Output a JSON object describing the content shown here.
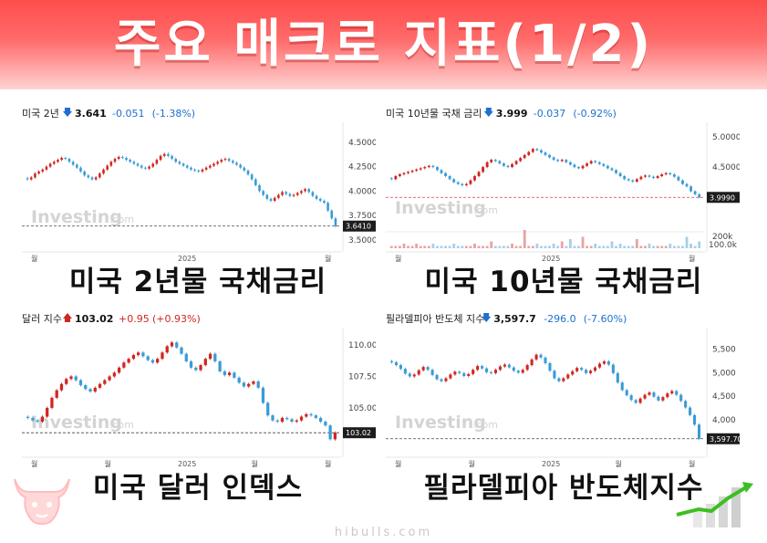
{
  "title": "주요 매크로 지표(1/2)",
  "footer": "hibulls.com",
  "colors": {
    "up": "#d0261f",
    "down": "#3a9bd6",
    "accent": "#ff5a5a"
  },
  "chart_data": [
    {
      "type": "candlestick",
      "name": "미국 2년물 국채금리",
      "caption": "미국 2년물 국채금리",
      "header": {
        "name": "미국 2년",
        "arrow": "down",
        "price": "3.641",
        "change": "-0.051",
        "pct": "(-1.38%)"
      },
      "yticks": [
        "4.5000",
        "4.2500",
        "4.0000",
        "3.7500",
        "3.5000"
      ],
      "ytick_values": [
        4.5,
        4.25,
        4.0,
        3.75,
        3.5
      ],
      "ylim": [
        3.47,
        4.63
      ],
      "xticks": [
        "월",
        "2025",
        "월"
      ],
      "last_label": "3.6410",
      "last": 3.641,
      "watermark": "Investing",
      "watermark_suffix": ".com",
      "closes": [
        4.12,
        4.14,
        4.18,
        4.2,
        4.22,
        4.25,
        4.28,
        4.3,
        4.32,
        4.34,
        4.33,
        4.3,
        4.27,
        4.24,
        4.2,
        4.16,
        4.14,
        4.12,
        4.14,
        4.18,
        4.22,
        4.26,
        4.3,
        4.33,
        4.35,
        4.34,
        4.32,
        4.3,
        4.28,
        4.26,
        4.24,
        4.23,
        4.25,
        4.28,
        4.32,
        4.36,
        4.38,
        4.36,
        4.33,
        4.3,
        4.28,
        4.26,
        4.24,
        4.22,
        4.21,
        4.2,
        4.22,
        4.24,
        4.26,
        4.28,
        4.3,
        4.32,
        4.33,
        4.31,
        4.29,
        4.27,
        4.24,
        4.21,
        4.17,
        4.12,
        4.06,
        4.0,
        3.96,
        3.92,
        3.9,
        3.93,
        3.96,
        3.99,
        3.97,
        3.95,
        3.96,
        3.98,
        4.0,
        4.02,
        3.99,
        3.95,
        3.92,
        3.9,
        3.88,
        3.8,
        3.72,
        3.641
      ]
    },
    {
      "type": "candlestick",
      "name": "미국 10년물 국채금리",
      "caption": "미국 10년물 국채금리",
      "header": {
        "name": "미국 10년물 국채 금리",
        "arrow": "down",
        "price": "3.999",
        "change": "-0.037",
        "pct": "(-0.92%)"
      },
      "yticks": [
        "5.0000",
        "4.5000",
        "4.0000"
      ],
      "ytick_values": [
        5.0,
        4.5,
        4.0
      ],
      "ylim": [
        3.55,
        5.12
      ],
      "xticks": [
        "월",
        "2025",
        "월"
      ],
      "last_label": "3.9990",
      "last": 3.999,
      "volume_label": "200k",
      "volume_label2": "100.0k",
      "watermark": "Investing",
      "watermark_suffix": ".com",
      "closes": [
        4.3,
        4.35,
        4.38,
        4.4,
        4.42,
        4.44,
        4.46,
        4.48,
        4.5,
        4.52,
        4.5,
        4.45,
        4.4,
        4.35,
        4.3,
        4.25,
        4.22,
        4.2,
        4.22,
        4.28,
        4.35,
        4.42,
        4.5,
        4.58,
        4.62,
        4.6,
        4.56,
        4.52,
        4.5,
        4.55,
        4.6,
        4.65,
        4.7,
        4.75,
        4.8,
        4.78,
        4.74,
        4.7,
        4.66,
        4.62,
        4.6,
        4.62,
        4.58,
        4.54,
        4.5,
        4.48,
        4.52,
        4.56,
        4.6,
        4.58,
        4.55,
        4.52,
        4.48,
        4.45,
        4.4,
        4.35,
        4.3,
        4.28,
        4.26,
        4.3,
        4.34,
        4.36,
        4.34,
        4.32,
        4.35,
        4.38,
        4.4,
        4.38,
        4.34,
        4.28,
        4.22,
        4.18,
        4.1,
        4.05,
        3.999
      ],
      "volumes": [
        1,
        1,
        1,
        2,
        1,
        1,
        2,
        1,
        1,
        1,
        2,
        1,
        1,
        1,
        1,
        2,
        1,
        1,
        1,
        1,
        2,
        1,
        1,
        1,
        3,
        1,
        1,
        1,
        1,
        2,
        1,
        1,
        8,
        1,
        1,
        2,
        1,
        1,
        1,
        2,
        1,
        3,
        1,
        4,
        1,
        1,
        5,
        1,
        1,
        2,
        1,
        1,
        1,
        3,
        1,
        2,
        1,
        1,
        1,
        4,
        1,
        1,
        2,
        1,
        1,
        1,
        1,
        2,
        1,
        1,
        1,
        5,
        2,
        1,
        3
      ]
    },
    {
      "type": "candlestick",
      "name": "미국 달러 인덱스",
      "caption": "미국 달러 인덱스",
      "header": {
        "name": "달러 지수",
        "arrow": "up",
        "price": "103.02",
        "change": "+0.95",
        "pct": "(+0.93%)"
      },
      "yticks": [
        "110.00",
        "107.50",
        "105.00"
      ],
      "ytick_values": [
        110.0,
        107.5,
        105.0
      ],
      "ylim": [
        101.8,
        110.8
      ],
      "xticks": [
        "월",
        "월",
        "2025",
        "월",
        "월"
      ],
      "last_label": "103.02",
      "last": 103.02,
      "watermark": "Investing",
      "watermark_suffix": ".com",
      "closes": [
        104.2,
        104.0,
        103.9,
        104.3,
        105.0,
        105.8,
        106.4,
        106.9,
        107.3,
        107.5,
        107.2,
        106.8,
        106.5,
        106.3,
        106.6,
        106.9,
        107.2,
        107.5,
        107.8,
        108.2,
        108.6,
        108.9,
        109.2,
        109.4,
        109.1,
        108.8,
        108.6,
        108.9,
        109.4,
        109.9,
        110.2,
        109.8,
        109.3,
        108.7,
        108.2,
        108.0,
        108.4,
        108.9,
        109.3,
        108.7,
        107.9,
        107.6,
        107.8,
        107.4,
        107.0,
        106.7,
        106.9,
        107.1,
        106.6,
        105.4,
        104.4,
        104.0,
        103.9,
        104.2,
        104.1,
        103.9,
        104.0,
        104.3,
        104.5,
        104.4,
        104.2,
        103.9,
        103.6,
        102.5,
        103.02
      ]
    },
    {
      "type": "candlestick",
      "name": "필라델피아 반도체지수",
      "caption": "필라델피아 반도체지수",
      "header": {
        "name": "필라델피아 반도체 지수",
        "arrow": "down",
        "price": "3,597.7",
        "change": "-296.0",
        "pct": "(-7.60%)"
      },
      "yticks": [
        "5,500",
        "5,000",
        "4,500",
        "4,000"
      ],
      "ytick_values": [
        5500,
        5000,
        4500,
        4000
      ],
      "ylim": [
        3400,
        5800
      ],
      "xticks": [
        "월",
        "월",
        "2025",
        "월",
        "월"
      ],
      "last_label": "3,597.70",
      "last": 3597.7,
      "watermark": "Investing",
      "watermark_suffix": ".com",
      "closes": [
        5220,
        5160,
        5080,
        4980,
        4920,
        4960,
        5050,
        5120,
        5060,
        4950,
        4860,
        4820,
        4880,
        4960,
        5020,
        4990,
        4930,
        4970,
        5060,
        5140,
        5090,
        5010,
        4990,
        5060,
        5130,
        5170,
        5110,
        5040,
        5000,
        5060,
        5160,
        5280,
        5380,
        5320,
        5200,
        5040,
        4880,
        4820,
        4880,
        4960,
        5030,
        5100,
        5060,
        4990,
        5040,
        5110,
        5190,
        5240,
        5170,
        4990,
        4790,
        4630,
        4520,
        4420,
        4360,
        4450,
        4530,
        4580,
        4490,
        4410,
        4480,
        4560,
        4610,
        4530,
        4400,
        4260,
        4100,
        3897.7,
        3597.7
      ]
    }
  ]
}
